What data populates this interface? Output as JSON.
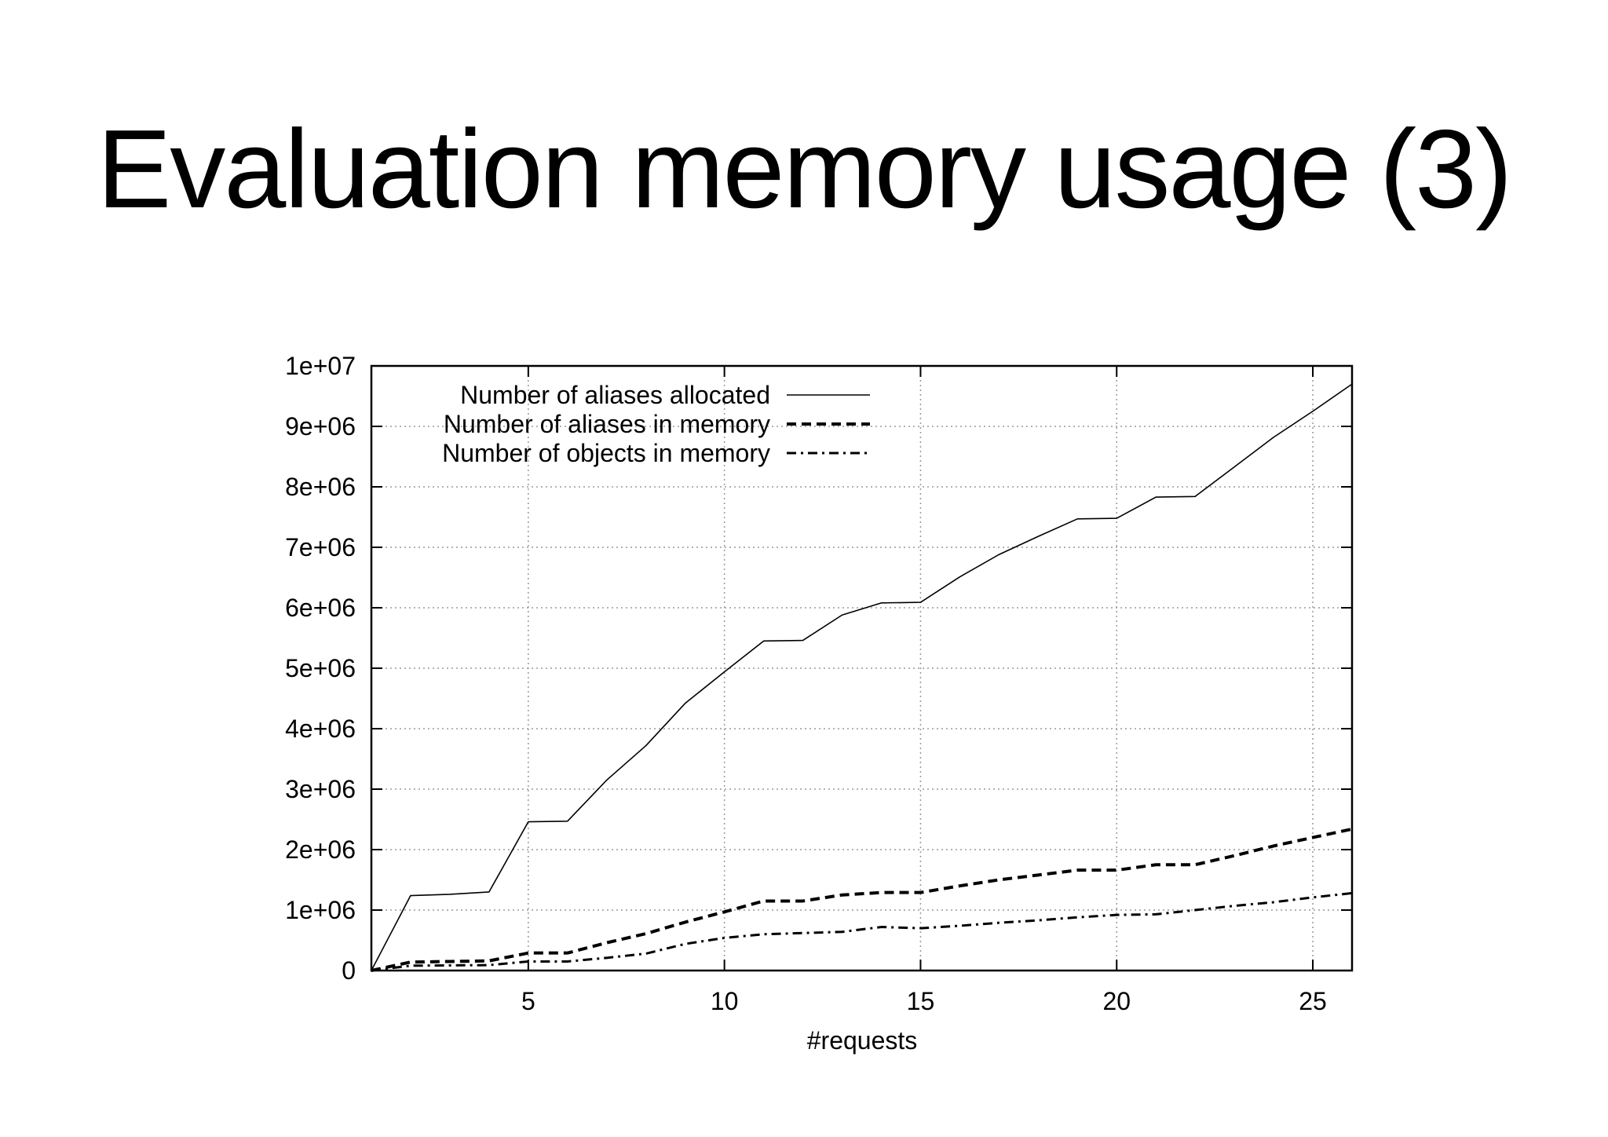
{
  "slide": {
    "title": "Evaluation memory usage (3)"
  },
  "chart_data": {
    "type": "line",
    "title": "",
    "xlabel": "#requests",
    "ylabel": "",
    "xlim": [
      1,
      26
    ],
    "ylim": [
      0,
      10000000
    ],
    "x_ticks": [
      5,
      10,
      15,
      20,
      25
    ],
    "x_tick_labels": [
      "5",
      "10",
      "15",
      "20",
      "25"
    ],
    "y_ticks": [
      0,
      1000000,
      2000000,
      3000000,
      4000000,
      5000000,
      6000000,
      7000000,
      8000000,
      9000000,
      10000000
    ],
    "y_tick_labels": [
      "0",
      "1e+06",
      "2e+06",
      "3e+06",
      "4e+06",
      "5e+06",
      "6e+06",
      "7e+06",
      "8e+06",
      "9e+06",
      "1e+07"
    ],
    "grid": true,
    "legend_position": "top-left",
    "x": [
      1,
      2,
      3,
      4,
      5,
      6,
      7,
      8,
      9,
      10,
      11,
      12,
      13,
      14,
      15,
      16,
      17,
      18,
      19,
      20,
      21,
      22,
      23,
      24,
      25,
      26
    ],
    "series": [
      {
        "name": "Number of aliases allocated",
        "style": "solid",
        "values": [
          0,
          1240000,
          1260000,
          1300000,
          2460000,
          2470000,
          3150000,
          3720000,
          4420000,
          4940000,
          5450000,
          5460000,
          5880000,
          6080000,
          6090000,
          6510000,
          6880000,
          7180000,
          7470000,
          7480000,
          7830000,
          7840000,
          8330000,
          8820000,
          9250000,
          9700000
        ]
      },
      {
        "name": "Number of aliases in memory",
        "style": "dashed",
        "values": [
          0,
          140000,
          150000,
          160000,
          290000,
          290000,
          460000,
          610000,
          800000,
          970000,
          1150000,
          1150000,
          1250000,
          1290000,
          1290000,
          1400000,
          1500000,
          1580000,
          1660000,
          1660000,
          1750000,
          1750000,
          1900000,
          2060000,
          2200000,
          2340000
        ]
      },
      {
        "name": "Number of objects in memory",
        "style": "dashdot",
        "values": [
          0,
          80000,
          85000,
          90000,
          150000,
          150000,
          210000,
          280000,
          440000,
          540000,
          600000,
          620000,
          640000,
          720000,
          700000,
          740000,
          790000,
          830000,
          880000,
          920000,
          930000,
          1000000,
          1070000,
          1130000,
          1210000,
          1280000
        ]
      }
    ]
  }
}
